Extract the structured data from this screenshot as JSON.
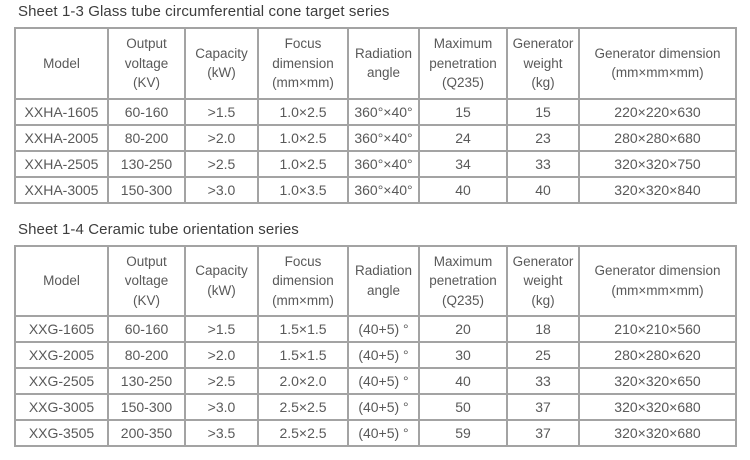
{
  "tables": [
    {
      "title": "Sheet 1-3 Glass tube circumferential cone target series",
      "headers": [
        "Model",
        "Output\nvoltage\n(KV)",
        "Capacity\n(kW)",
        "Focus\ndimension\n(mm×mm)",
        "Radiation\nangle",
        "Maximum\npenetration\n(Q235)",
        "Generator\nweight\n(kg)",
        "Generator dimension\n(mm×mm×mm)"
      ],
      "rows": [
        [
          "XXHA-1605",
          "60-160",
          ">1.5",
          "1.0×2.5",
          "360°×40°",
          "15",
          "15",
          "220×220×630"
        ],
        [
          "XXHA-2005",
          "80-200",
          ">2.0",
          "1.0×2.5",
          "360°×40°",
          "24",
          "23",
          "280×280×680"
        ],
        [
          "XXHA-2505",
          "130-250",
          ">2.5",
          "1.0×2.5",
          "360°×40°",
          "34",
          "33",
          "320×320×750"
        ],
        [
          "XXHA-3005",
          "150-300",
          ">3.0",
          "1.0×3.5",
          "360°×40°",
          "40",
          "40",
          "320×320×840"
        ]
      ]
    },
    {
      "title": "Sheet 1-4 Ceramic tube orientation series",
      "headers": [
        "Model",
        "Output\nvoltage\n(KV)",
        "Capacity\n(kW)",
        "Focus\ndimension\n(mm×mm)",
        "Radiation\nangle",
        "Maximum\npenetration\n(Q235)",
        "Generator\nweight\n(kg)",
        "Generator dimension\n(mm×mm×mm)"
      ],
      "rows": [
        [
          "XXG-1605",
          "60-160",
          ">1.5",
          "1.5×1.5",
          "(40+5) °",
          "20",
          "18",
          "210×210×560"
        ],
        [
          "XXG-2005",
          "80-200",
          ">2.0",
          "1.5×1.5",
          "(40+5) °",
          "30",
          "25",
          "280×280×620"
        ],
        [
          "XXG-2505",
          "130-250",
          ">2.5",
          "2.0×2.0",
          "(40+5) °",
          "40",
          "33",
          "320×320×650"
        ],
        [
          "XXG-3005",
          "150-300",
          ">3.0",
          "2.5×2.5",
          "(40+5) °",
          "50",
          "37",
          "320×320×680"
        ],
        [
          "XXG-3505",
          "200-350",
          ">3.5",
          "2.5×2.5",
          "(40+5) °",
          "59",
          "37",
          "320×320×680"
        ]
      ]
    }
  ],
  "colors": {
    "table_border": "#a3a3a3",
    "table_text": "#595959",
    "title_text": "#3d3d3d",
    "background": "#ffffff"
  }
}
